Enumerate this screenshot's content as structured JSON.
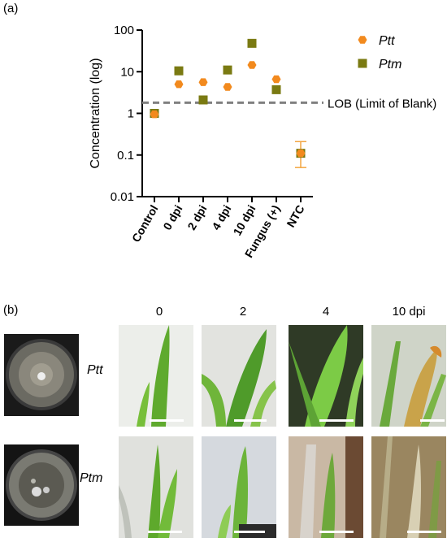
{
  "panel_a_label": "(a)",
  "panel_b_label": "(b)",
  "chart_data": {
    "type": "scatter",
    "categories": [
      "Control",
      "0 dpi",
      "2 dpi",
      "4 dpi",
      "10 dpi",
      "Fungus (+)",
      "NTC"
    ],
    "ylabel": "Concentration (log)",
    "xlabel": "",
    "yscale": "log",
    "ylim": [
      0.01,
      100
    ],
    "yticks": [
      "0.01",
      "0.1",
      "1",
      "10",
      "100"
    ],
    "series": [
      {
        "name": "Ptt",
        "marker": "hexagon",
        "color": "#f28a1e",
        "values": [
          0.95,
          5.0,
          5.6,
          4.3,
          14.5,
          6.6,
          0.11
        ]
      },
      {
        "name": "Ptm",
        "marker": "square",
        "color": "#7a7a12",
        "values": [
          1.0,
          10.5,
          2.1,
          11.0,
          48.0,
          3.7,
          0.11
        ]
      }
    ],
    "error_bar": {
      "category": "NTC",
      "low": 0.05,
      "high": 0.21,
      "color": "#f2a541"
    },
    "reference_line": {
      "value": 1.8,
      "label": "LOB (Limit of Blank)",
      "style": "dashed",
      "color": "#808080"
    },
    "legend_position": "top-right"
  },
  "photo_panel": {
    "columns": [
      "0",
      "2",
      "4",
      "10 dpi"
    ],
    "rows": [
      "Ptt",
      "Ptm"
    ]
  }
}
